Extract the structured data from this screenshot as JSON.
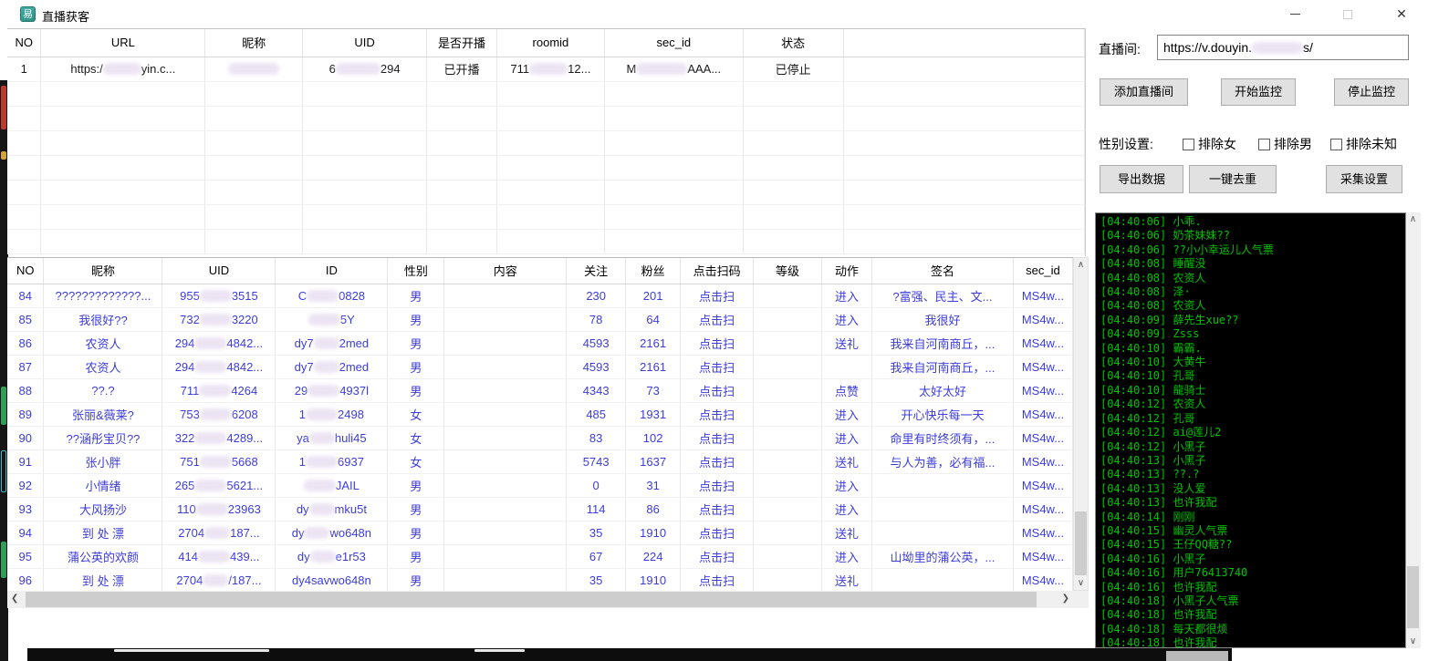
{
  "window": {
    "title": "直播获客",
    "icon_glyph": "易"
  },
  "top_table": {
    "headers": [
      "NO",
      "URL",
      "昵称",
      "UID",
      "是否开播",
      "roomid",
      "sec_id",
      "状态"
    ],
    "row": [
      "1",
      "https:/██████yin.c...",
      "████████",
      "6███████294",
      "已开播",
      "711██████12...",
      "M████████AAA...",
      "已停止"
    ]
  },
  "controls": {
    "room_label": "直播间:",
    "room_url": "https://v.douyin.████████s/",
    "add_room": "添加直播间",
    "start_monitor": "开始监控",
    "stop_monitor": "停止监控",
    "gender_label": "性别设置:",
    "exclude_female": "排除女",
    "exclude_male": "排除男",
    "exclude_unknown": "排除未知",
    "export_data": "导出数据",
    "dedupe": "一键去重",
    "collect_settings": "采集设置"
  },
  "bottom_table": {
    "headers": [
      "NO",
      "昵称",
      "UID",
      "ID",
      "性别",
      "内容",
      "关注",
      "粉丝",
      "点击扫码",
      "等级",
      "动作",
      "签名",
      "sec_id"
    ],
    "rows": [
      [
        "84",
        "?????????????...",
        "955█████3515",
        "C█████0828",
        "男",
        "",
        "230",
        "201",
        "点击扫",
        "",
        "进入",
        "?富强、民主、文...",
        "MS4w..."
      ],
      [
        "85",
        "我很好??",
        "732█████3220",
        "█████5Y",
        "男",
        "",
        "78",
        "64",
        "点击扫",
        "",
        "进入",
        "我很好",
        "MS4w..."
      ],
      [
        "86",
        "农资人",
        "294█████4842...",
        "dy7████2med",
        "男",
        "",
        "4593",
        "2161",
        "点击扫",
        "",
        "送礼",
        "我来自河南商丘，...",
        "MS4w..."
      ],
      [
        "87",
        "农资人",
        "294█████4842...",
        "dy7████2med",
        "男",
        "",
        "4593",
        "2161",
        "点击扫",
        "",
        "",
        "我来自河南商丘，...",
        "MS4w..."
      ],
      [
        "88",
        "??.?",
        "711█████4264",
        "29█████4937l",
        "男",
        "",
        "4343",
        "73",
        "点击扫",
        "",
        "点赞",
        "太好太好",
        "MS4w..."
      ],
      [
        "89",
        "张丽&薇莱?",
        "753█████6208",
        "1█████2498",
        "女",
        "",
        "485",
        "1931",
        "点击扫",
        "",
        "进入",
        "开心快乐每一天",
        "MS4w..."
      ],
      [
        "90",
        "??涵彤宝贝??",
        "322█████4289...",
        "ya████huli45",
        "女",
        "",
        "83",
        "102",
        "点击扫",
        "",
        "进入",
        "命里有时终须有，...",
        "MS4w..."
      ],
      [
        "91",
        "张小胖",
        "751█████5668",
        "1█████6937",
        "女",
        "",
        "5743",
        "1637",
        "点击扫",
        "",
        "送礼",
        "与人为善，必有福...",
        "MS4w..."
      ],
      [
        "92",
        "小情绪",
        "265█████5621...",
        "█████JAIL",
        "男",
        "",
        "0",
        "31",
        "点击扫",
        "",
        "进入",
        "",
        "MS4w..."
      ],
      [
        "93",
        "大风扬沙",
        "110█████23963",
        "dy████mku5t",
        "男",
        "",
        "114",
        "86",
        "点击扫",
        "",
        "进入",
        "",
        "MS4w..."
      ],
      [
        "94",
        "到 处 漂",
        "2704████187...",
        "dy████wo648n",
        "男",
        "",
        "35",
        "1910",
        "点击扫",
        "",
        "送礼",
        "",
        "MS4w..."
      ],
      [
        "95",
        "蒲公英的欢颜",
        "414█████439...",
        "dy████e1r53",
        "男",
        "",
        "67",
        "224",
        "点击扫",
        "",
        "进入",
        "山坳里的蒲公英，...",
        "MS4w..."
      ],
      [
        "96",
        "到 处 漂",
        "2704████/187...",
        "dy4savwo648n",
        "男",
        "",
        "35",
        "1910",
        "点击扫",
        "",
        "送礼",
        "",
        "MS4w..."
      ]
    ]
  },
  "console": {
    "lines": [
      "[04:40:06] 小乖.",
      "[04:40:06] 奶茶妹妹??",
      "[04:40:06] ??小小幸运儿人气票",
      "[04:40:08] 睡醒没",
      "[04:40:08] 农资人",
      "[04:40:08] 泽·",
      "[04:40:08] 农资人",
      "[04:40:09] 薛先生xue??",
      "[04:40:09] Zsss",
      "[04:40:10] 霸霸.",
      "[04:40:10] 大黄牛",
      "[04:40:10] 孔哥",
      "[04:40:10] 龍骑士",
      "[04:40:12] 农资人",
      "[04:40:12] 孔哥",
      "[04:40:12] ai@莲儿2",
      "[04:40:12] 小黑子",
      "[04:40:13] 小黑子",
      "[04:40:13] ??.?",
      "[04:40:13] 没人爱",
      "[04:40:13] 也许我配",
      "[04:40:14] 刚刚",
      "[04:40:15] 幽灵人气票",
      "[04:40:15] 王仔QQ糖??",
      "[04:40:16] 小黑子",
      "[04:40:16] 用户76413740",
      "[04:40:16] 也许我配",
      "[04:40:18] 小黑子人气票",
      "[04:40:18] 也许我配",
      "[04:40:18] 每天都很烦",
      "[04:40:18] 也许我配"
    ]
  }
}
